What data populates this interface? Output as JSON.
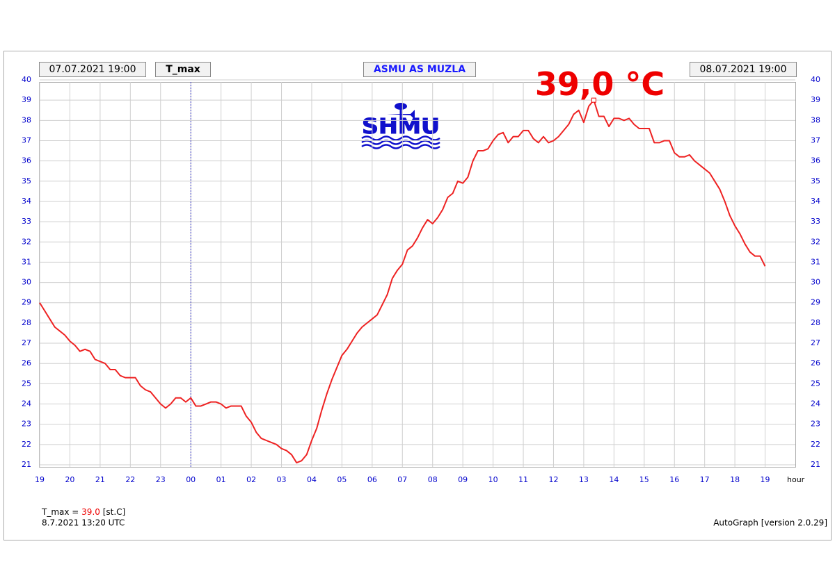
{
  "chart_data": {
    "type": "line",
    "start_label": "07.07.2021 19:00",
    "element": "T_max",
    "station": "ASMU AS MUZLA",
    "end_label": "08.07.2021 19:00",
    "logo": "SHMU",
    "x_label": "hour",
    "x": [
      0,
      10,
      20,
      30,
      40,
      50,
      60,
      70,
      80,
      90,
      100,
      110,
      120,
      130,
      140,
      150,
      160,
      170,
      180,
      190,
      200,
      210,
      220,
      230,
      240,
      250,
      260,
      270,
      280,
      290,
      300,
      310,
      320,
      330,
      340,
      350,
      360,
      370,
      380,
      390,
      400,
      410,
      420,
      430,
      440,
      450,
      460,
      470,
      480,
      490,
      500,
      510,
      520,
      530,
      540,
      550,
      560,
      570,
      580,
      590,
      600,
      610,
      620,
      630,
      640,
      650,
      660,
      670,
      680,
      690,
      700,
      710,
      720,
      730,
      740,
      750,
      760,
      770,
      780,
      790,
      800,
      810,
      820,
      830,
      840,
      850,
      860,
      870,
      880,
      890,
      900,
      910,
      920,
      930,
      940,
      950,
      960,
      970,
      980,
      990,
      1000,
      1010,
      1020,
      1030,
      1040,
      1050,
      1060,
      1070,
      1080,
      1090,
      1100,
      1110,
      1120,
      1130,
      1140,
      1150,
      1160,
      1170,
      1180,
      1190,
      1200,
      1210,
      1220,
      1230,
      1240,
      1250,
      1260,
      1270,
      1280,
      1290,
      1300,
      1310,
      1320,
      1330,
      1340,
      1350,
      1360,
      1370,
      1380,
      1390,
      1400,
      1410,
      1420,
      1430,
      1440
    ],
    "series": [
      {
        "name": "T_max",
        "color": "#ee2222",
        "values": [
          29.0,
          28.6,
          28.2,
          27.8,
          27.6,
          27.4,
          27.1,
          26.9,
          26.6,
          26.7,
          26.6,
          26.2,
          26.1,
          26.0,
          25.7,
          25.7,
          25.4,
          25.3,
          25.3,
          25.3,
          24.9,
          24.7,
          24.6,
          24.3,
          24.0,
          23.8,
          24.0,
          24.3,
          24.3,
          24.1,
          24.3,
          23.9,
          23.9,
          24.0,
          24.1,
          24.1,
          24.0,
          23.8,
          23.9,
          23.9,
          23.9,
          23.4,
          23.1,
          22.6,
          22.3,
          22.2,
          22.1,
          22.0,
          21.8,
          21.7,
          21.5,
          21.1,
          21.2,
          21.5,
          22.2,
          22.8,
          23.7,
          24.5,
          25.2,
          25.8,
          26.4,
          26.7,
          27.1,
          27.5,
          27.8,
          28.0,
          28.2,
          28.4,
          28.9,
          29.4,
          30.2,
          30.6,
          30.9,
          31.6,
          31.8,
          32.2,
          32.7,
          33.1,
          32.9,
          33.2,
          33.6,
          34.2,
          34.4,
          35.0,
          34.9,
          35.2,
          36.0,
          36.5,
          36.5,
          36.6,
          37.0,
          37.3,
          37.4,
          36.9,
          37.2,
          37.2,
          37.5,
          37.5,
          37.1,
          36.9,
          37.2,
          36.9,
          37.0,
          37.2,
          37.5,
          37.8,
          38.3,
          38.5,
          37.9,
          38.7,
          39.0,
          38.2,
          38.2,
          37.7,
          38.1,
          38.1,
          38.0,
          38.1,
          37.8,
          37.6,
          37.6,
          37.6,
          36.9,
          36.9,
          37.0,
          37.0,
          36.4,
          36.2,
          36.2,
          36.3,
          36.0,
          35.8,
          35.6,
          35.4,
          35.0,
          34.6,
          34.0,
          33.3,
          32.8,
          32.4,
          31.9,
          31.5,
          31.3,
          31.3,
          30.8
        ]
      }
    ],
    "max": {
      "x": 1100,
      "value": 39.0,
      "value_label": "39,0 °C"
    },
    "day_boundary": 300,
    "xlim": [
      0,
      1500
    ],
    "xticks": [
      {
        "value": 0,
        "label": "19"
      },
      {
        "value": 60,
        "label": "20"
      },
      {
        "value": 120,
        "label": "21"
      },
      {
        "value": 180,
        "label": "22"
      },
      {
        "value": 240,
        "label": "23"
      },
      {
        "value": 300,
        "label": "00"
      },
      {
        "value": 360,
        "label": "01"
      },
      {
        "value": 420,
        "label": "02"
      },
      {
        "value": 480,
        "label": "03"
      },
      {
        "value": 540,
        "label": "04"
      },
      {
        "value": 600,
        "label": "05"
      },
      {
        "value": 660,
        "label": "06"
      },
      {
        "value": 720,
        "label": "07"
      },
      {
        "value": 780,
        "label": "08"
      },
      {
        "value": 840,
        "label": "09"
      },
      {
        "value": 900,
        "label": "10"
      },
      {
        "value": 960,
        "label": "11"
      },
      {
        "value": 1020,
        "label": "12"
      },
      {
        "value": 1080,
        "label": "13"
      },
      {
        "value": 1140,
        "label": "14"
      },
      {
        "value": 1200,
        "label": "15"
      },
      {
        "value": 1260,
        "label": "16"
      },
      {
        "value": 1320,
        "label": "17"
      },
      {
        "value": 1380,
        "label": "18"
      },
      {
        "value": 1440,
        "label": "19"
      }
    ],
    "ylim": [
      21,
      40
    ],
    "yticks": [
      21,
      22,
      23,
      24,
      25,
      26,
      27,
      28,
      29,
      30,
      31,
      32,
      33,
      34,
      35,
      36,
      37,
      38,
      39,
      40
    ],
    "y2lim": [
      21,
      40
    ],
    "y2ticks": [
      21,
      22,
      23,
      24,
      25,
      26,
      27,
      28,
      29,
      30,
      31,
      32,
      33,
      34,
      35,
      36,
      37,
      38,
      39,
      40
    ],
    "grid": true,
    "footer": {
      "prefix": "T_max =",
      "value_text": "39.0",
      "unit": "[st.C]",
      "time": "8.7.2021 13:20 UTC",
      "version": "AutoGraph [version 2.0.29]"
    }
  }
}
